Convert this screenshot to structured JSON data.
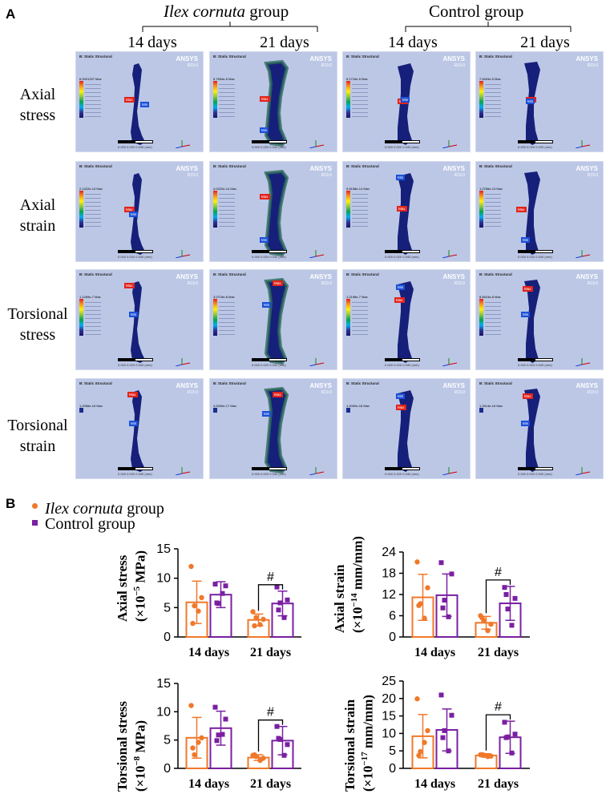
{
  "panel_a": {
    "letter": "A",
    "groups": [
      {
        "name_italic": "Ilex cornuta",
        "name_rest": " group"
      },
      {
        "name_italic": "",
        "name_rest": "Control group"
      }
    ],
    "day_labels": [
      "14 days",
      "21 days",
      "14 days",
      "21 days"
    ],
    "rows": [
      {
        "line1": "Axial",
        "line2": "stress"
      },
      {
        "line1": "Axial",
        "line2": "strain"
      },
      {
        "line1": "Torsional",
        "line2": "stress"
      },
      {
        "line1": "Torsional",
        "line2": "strain"
      }
    ],
    "sim_text": {
      "logo": "ANSYS",
      "version": "R19.0",
      "title": "B: Static Structural",
      "max_tag": "Max",
      "min_tag": "Min",
      "min_value": "0 Min",
      "scale_unit": "0.000        0.020        0.040 (mm)",
      "scale_mid": "0.010        0.030"
    },
    "sim_max_values": [
      [
        "6.0001257 Max",
        "5.7654e-5 Max",
        "5.1716e-5 Max",
        "7.5494e-5 Max"
      ],
      [
        "2.1422e-13 Max",
        "4.0222e-14 Max",
        "9.6158e-14 Max",
        "1.0766e-13 Max"
      ],
      [
        "1.1269e-7 Max",
        "3.0715e-8 Max",
        "1.2198e-7 Max",
        "8.6524e-8 Max"
      ],
      [
        "1.2066e-16 Max",
        "4.0000e-17 Max",
        "1.2000e-16 Max",
        "1.3314e-16 Max"
      ]
    ]
  },
  "panel_b": {
    "letter": "B",
    "legend": [
      {
        "italic": "Ilex cornuta",
        "rest": " group",
        "color": "#f0782a",
        "marker": "circle"
      },
      {
        "italic": "",
        "rest": "Control group",
        "color": "#7a1fa2",
        "marker": "square"
      }
    ],
    "ylabels": [
      {
        "line1": "Axial stress",
        "line2_pre": "(×10",
        "line2_exp": "−5",
        "line2_post": " MPa)"
      },
      {
        "line1": "Axial strain",
        "line2_pre": "(×10",
        "line2_exp": "−14",
        "line2_post": " mm/mm)"
      },
      {
        "line1": "Torsional stress",
        "line2_pre": "(×10",
        "line2_exp": "−8",
        "line2_post": " MPa)"
      },
      {
        "line1": "Torsional strain",
        "line2_pre": "(×10",
        "line2_exp": "−17",
        "line2_post": " mm/mm)"
      }
    ]
  },
  "chart_data": [
    {
      "type": "bar",
      "categories": [
        "14 days",
        "21 days"
      ],
      "ylabel": "Axial stress (×10−5 MPa)",
      "ylim": [
        0,
        15
      ],
      "yticks": [
        0,
        5,
        10,
        15
      ],
      "annotation": "#",
      "series": [
        {
          "name": "Ilex cornuta group",
          "values": [
            5.9,
            2.9
          ],
          "error": [
            3.6,
            1.0
          ],
          "points": [
            [
              12.0,
              6.7,
              5.3,
              4.4,
              2.3
            ],
            [
              4.3,
              3.0,
              3.3,
              2.1,
              1.9
            ]
          ]
        },
        {
          "name": "Control group",
          "values": [
            7.2,
            5.7
          ],
          "error": [
            2.2,
            2.1
          ],
          "points": [
            [
              9.0,
              8.7,
              5.7,
              7.4,
              5.8
            ],
            [
              8.5,
              6.3,
              5.8,
              3.3,
              4.6
            ]
          ]
        }
      ]
    },
    {
      "type": "bar",
      "categories": [
        "14 days",
        "21 days"
      ],
      "ylabel": "Axial strain (×10−14 mm/mm)",
      "ylim": [
        0,
        24
      ],
      "yticks": [
        0,
        6,
        12,
        18,
        24
      ],
      "annotation": "#",
      "series": [
        {
          "name": "Ilex cornuta group",
          "values": [
            11.2,
            4.0
          ],
          "error": [
            6.5,
            1.8
          ],
          "points": [
            [
              21.2,
              13.9,
              9.4,
              5.3,
              8.9
            ],
            [
              6.0,
              3.6,
              4.6,
              1.8,
              5.4
            ]
          ]
        },
        {
          "name": "Control group",
          "values": [
            11.8,
            9.5
          ],
          "error": [
            6.0,
            4.8
          ],
          "points": [
            [
              21.0,
              17.8,
              10.4,
              5.7,
              8.2
            ],
            [
              14.0,
              10.9,
              7.9,
              3.3,
              12.0
            ]
          ]
        }
      ]
    },
    {
      "type": "bar",
      "categories": [
        "14 days",
        "21 days"
      ],
      "ylabel": "Torsional stress (×10−8 MPa)",
      "ylim": [
        0,
        15
      ],
      "yticks": [
        0,
        5,
        10,
        15
      ],
      "annotation": "#",
      "series": [
        {
          "name": "Ilex cornuta group",
          "values": [
            5.4,
            1.9
          ],
          "error": [
            3.6,
            0.5
          ],
          "points": [
            [
              11.1,
              5.4,
              2.4,
              4.6,
              3.6
            ],
            [
              2.3,
              1.8,
              2.1,
              1.4,
              2.4
            ]
          ]
        },
        {
          "name": "Control group",
          "values": [
            7.1,
            4.9
          ],
          "error": [
            3.0,
            2.5
          ],
          "points": [
            [
              10.8,
              8.7,
              5.9,
              6.0,
              4.9
            ],
            [
              7.4,
              4.2,
              5.1,
              2.3,
              5.3
            ]
          ]
        }
      ]
    },
    {
      "type": "bar",
      "categories": [
        "14 days",
        "21 days"
      ],
      "ylabel": "Torsional strain (×10−17 mm/mm)",
      "ylim": [
        0,
        25
      ],
      "yticks": [
        0,
        5,
        10,
        15,
        20,
        25
      ],
      "annotation": "#",
      "series": [
        {
          "name": "Ilex cornuta group",
          "values": [
            9.2,
            3.7
          ],
          "error": [
            6.2,
            0.5
          ],
          "points": [
            [
              19.9,
              10.8,
              4.8,
              7.4,
              3.7
            ],
            [
              3.9,
              3.5,
              3.8,
              3.4,
              3.9
            ]
          ]
        },
        {
          "name": "Control group",
          "values": [
            11.0,
            8.9
          ],
          "error": [
            6.0,
            4.6
          ],
          "points": [
            [
              21.0,
              15.2,
              10.8,
              5.0,
              8.8
            ],
            [
              13.2,
              9.8,
              9.0,
              4.4,
              8.8
            ]
          ]
        }
      ]
    }
  ]
}
